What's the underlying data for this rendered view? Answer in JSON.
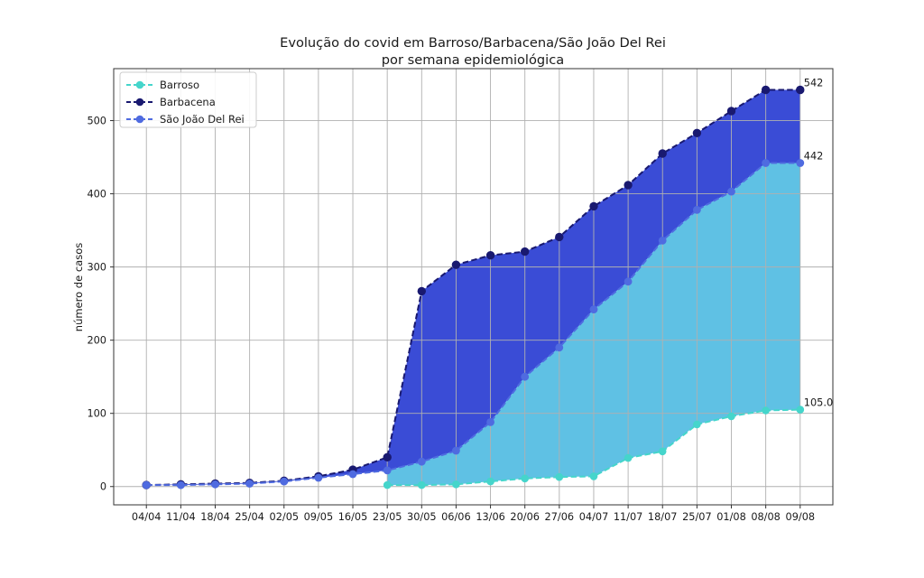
{
  "figure": {
    "background": "#ffffff"
  },
  "chart_data": {
    "type": "area",
    "title": "Evolução do covid em Barroso/Barbacena/São João Del Rei",
    "subtitle": "por semana epidemiológica",
    "ylabel": "número de casos",
    "xlabel": "",
    "categories": [
      "04/04",
      "11/04",
      "18/04",
      "25/04",
      "02/05",
      "09/05",
      "16/05",
      "23/05",
      "30/05",
      "06/06",
      "13/06",
      "20/06",
      "27/06",
      "04/07",
      "11/07",
      "18/07",
      "25/07",
      "01/08",
      "08/08",
      "09/08"
    ],
    "yticks": [
      0,
      100,
      200,
      300,
      400,
      500
    ],
    "ylim": [
      -25,
      571
    ],
    "grid": true,
    "grid_color": "#b0b0b0",
    "axis_color": "#333333",
    "legend": {
      "position": "upper-left",
      "entries": [
        "Barroso",
        "Barbacena",
        "São João Del Rei"
      ]
    },
    "series": [
      {
        "name": "Barroso",
        "line_color": "#45d5cb",
        "linestyle": "dashed",
        "marker": "circle",
        "values": [
          null,
          null,
          null,
          null,
          null,
          null,
          null,
          2,
          2,
          3,
          7,
          11,
          13,
          14,
          39,
          48,
          85,
          96,
          104,
          105
        ]
      },
      {
        "name": "Barbacena",
        "line_color": "#191970",
        "linestyle": "dashed",
        "marker": "circle",
        "values": [
          2,
          3,
          4,
          5,
          8,
          14,
          23,
          40,
          267,
          303,
          316,
          321,
          341,
          383,
          412,
          455,
          483,
          513,
          542,
          542
        ]
      },
      {
        "name": "São João Del Rei",
        "line_color": "#4f6be0",
        "linestyle": "dashed",
        "marker": "circle",
        "values": [
          2,
          2,
          3,
          4,
          7,
          12,
          17,
          22,
          34,
          49,
          88,
          150,
          190,
          242,
          280,
          336,
          378,
          403,
          442,
          442
        ]
      }
    ],
    "fills": [
      {
        "upper": "Barbacena",
        "lower": "São João Del Rei",
        "color": "#3a4cd6"
      },
      {
        "upper": "São João Del Rei",
        "lower": "Barroso",
        "color": "#5fc1e4"
      }
    ],
    "annotations": [
      {
        "text": "542",
        "category": "09/08",
        "value": 542
      },
      {
        "text": "442",
        "category": "09/08",
        "value": 442
      },
      {
        "text": "105.0",
        "category": "09/08",
        "value": 105
      }
    ]
  }
}
